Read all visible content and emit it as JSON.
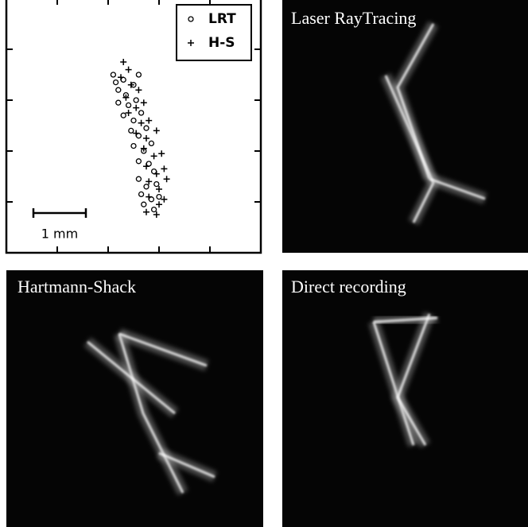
{
  "chart_data": {
    "type": "scatter",
    "xlim": [
      0,
      5
    ],
    "ylim": [
      0,
      5
    ],
    "scale_bar_label": "1 mm",
    "series": [
      {
        "name": "LRT",
        "marker": "circle",
        "color": "#000000",
        "x": [
          2.1,
          2.15,
          2.2,
          2.3,
          2.35,
          2.5,
          2.6,
          2.2,
          2.4,
          2.55,
          2.3,
          2.5,
          2.65,
          2.45,
          2.6,
          2.75,
          2.5,
          2.7,
          2.85,
          2.6,
          2.8,
          2.9,
          2.6,
          2.75,
          2.95,
          2.65,
          2.85,
          2.7,
          2.9,
          3.0
        ],
        "values": [
          3.5,
          3.35,
          3.2,
          3.4,
          3.1,
          3.3,
          3.5,
          2.95,
          2.9,
          3.0,
          2.7,
          2.6,
          2.75,
          2.4,
          2.3,
          2.45,
          2.1,
          2.0,
          2.15,
          1.8,
          1.75,
          1.6,
          1.45,
          1.3,
          1.35,
          1.15,
          1.05,
          0.95,
          0.85,
          1.1
        ]
      },
      {
        "name": "H-S",
        "marker": "plus",
        "color": "#000000",
        "x": [
          2.3,
          2.4,
          2.25,
          2.45,
          2.6,
          2.35,
          2.55,
          2.7,
          2.4,
          2.65,
          2.8,
          2.55,
          2.75,
          2.95,
          2.7,
          2.9,
          3.05,
          2.75,
          2.95,
          3.1,
          2.8,
          3.0,
          3.15,
          2.8,
          3.0,
          2.75,
          2.95,
          3.1
        ],
        "values": [
          3.75,
          3.6,
          3.45,
          3.3,
          3.2,
          3.05,
          2.85,
          2.95,
          2.75,
          2.55,
          2.6,
          2.35,
          2.25,
          2.4,
          2.05,
          1.9,
          1.95,
          1.7,
          1.55,
          1.65,
          1.4,
          1.25,
          1.45,
          1.1,
          0.95,
          0.8,
          0.75,
          1.05
        ]
      }
    ]
  },
  "panels": [
    {
      "label": "Laser RayTracing"
    },
    {
      "label": "Hartmann-Shack"
    },
    {
      "label": "Direct recording"
    }
  ]
}
